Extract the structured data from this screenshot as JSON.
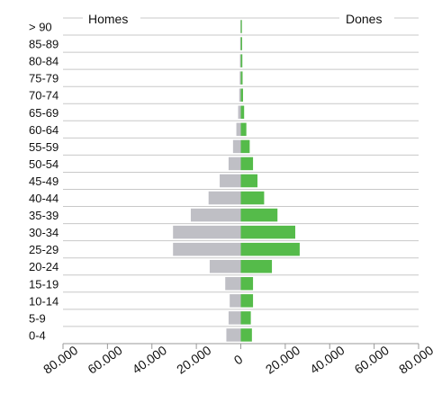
{
  "chart_data": {
    "type": "bar",
    "orientation": "horizontal-diverging",
    "categories": [
      "> 90",
      "85-89",
      "80-84",
      "75-79",
      "70-74",
      "65-69",
      "60-64",
      "55-59",
      "50-54",
      "45-49",
      "40-44",
      "35-39",
      "30-34",
      "25-29",
      "20-24",
      "15-19",
      "10-14",
      "5-9",
      "0-4"
    ],
    "series": [
      {
        "name": "Homes",
        "side": "left",
        "color": "#bfbfc5",
        "values": [
          200,
          300,
          400,
          500,
          700,
          1200,
          2000,
          3500,
          5500,
          9500,
          14500,
          22500,
          30500,
          30500,
          14000,
          7000,
          5000,
          5500,
          6500
        ]
      },
      {
        "name": "Dones",
        "side": "right",
        "color": "#55bb4a",
        "values": [
          500,
          600,
          700,
          800,
          1000,
          1500,
          2500,
          4000,
          5500,
          7500,
          10500,
          16500,
          24500,
          26500,
          14000,
          5500,
          5500,
          4500,
          5000
        ]
      }
    ],
    "x_ticks": [
      "80.000",
      "60.000",
      "40.000",
      "20.000",
      "0",
      "20.000",
      "40.000",
      "60.000",
      "80.000"
    ],
    "xlim": [
      -80000,
      80000
    ],
    "grid": "horizontal",
    "legend": "inline-top"
  }
}
